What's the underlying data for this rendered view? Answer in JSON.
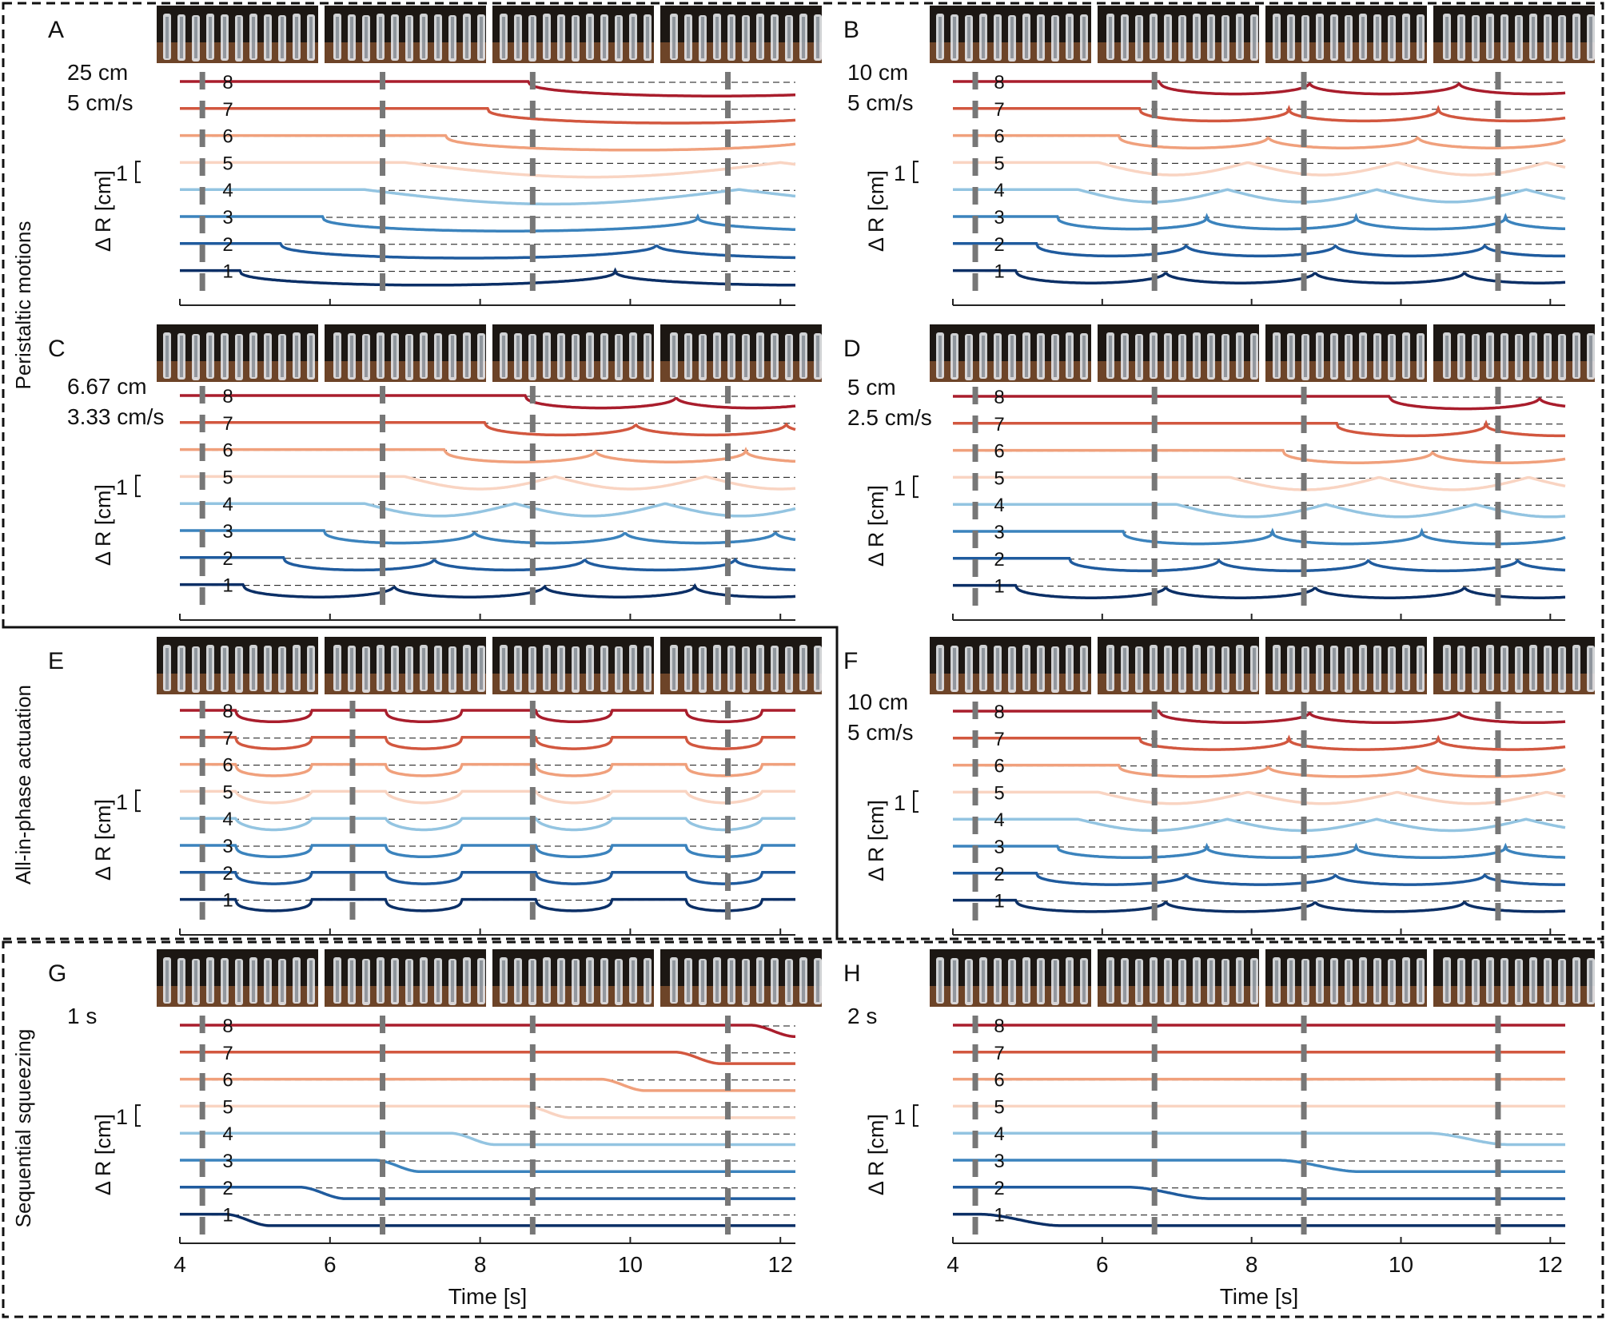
{
  "figure": {
    "groups": [
      {
        "label": "Peristaltic motions"
      },
      {
        "label": "All-in-phase actuation"
      },
      {
        "label": "Sequential squeezing"
      }
    ],
    "x_axis_label": "Time [s]",
    "x_ticks": [
      "4",
      "6",
      "8",
      "10",
      "12"
    ],
    "y_axis_label": "Δ R [cm]",
    "scale_bar_label": "1"
  },
  "colors": {
    "1": "#0b2f66",
    "2": "#1f5b9e",
    "3": "#3b83bd",
    "4": "#93c4e1",
    "5": "#f9d4c2",
    "6": "#f0a07c",
    "7": "#d2573f",
    "8": "#a91d2c",
    "dash_line": "#777777",
    "frame": "#222222",
    "photo_bg": "#1c1713"
  },
  "chart_data": [
    {
      "panel": "A",
      "type": "line",
      "params": [
        "25 cm",
        "5 cm/s"
      ],
      "xlim": [
        4,
        12.2
      ],
      "wavelength_cm": 25,
      "speed_cm_s": 5,
      "mode": "peristaltic",
      "dip_cm": 0.7,
      "x_markers": [
        4.3,
        6.7,
        8.7,
        11.3
      ],
      "series_labels": [
        "1",
        "2",
        "3",
        "4",
        "5",
        "6",
        "7",
        "8"
      ]
    },
    {
      "panel": "B",
      "type": "line",
      "params": [
        "10 cm",
        "5 cm/s"
      ],
      "xlim": [
        4,
        12.2
      ],
      "wavelength_cm": 10,
      "speed_cm_s": 5,
      "mode": "peristaltic",
      "dip_cm": 0.6,
      "x_markers": [
        4.3,
        6.7,
        8.7,
        11.3
      ],
      "series_labels": [
        "1",
        "2",
        "3",
        "4",
        "5",
        "6",
        "7",
        "8"
      ]
    },
    {
      "panel": "C",
      "type": "line",
      "params": [
        "6.67 cm",
        "3.33 cm/s"
      ],
      "xlim": [
        4,
        12.2
      ],
      "wavelength_cm": 6.67,
      "speed_cm_s": 3.33,
      "mode": "peristaltic",
      "dip_cm": 0.6,
      "x_markers": [
        4.3,
        6.7,
        8.7,
        11.3
      ],
      "series_labels": [
        "1",
        "2",
        "3",
        "4",
        "5",
        "6",
        "7",
        "8"
      ]
    },
    {
      "panel": "D",
      "type": "line",
      "params": [
        "5 cm",
        "2.5 cm/s"
      ],
      "xlim": [
        4,
        12.2
      ],
      "wavelength_cm": 5,
      "speed_cm_s": 2.5,
      "mode": "peristaltic",
      "dip_cm": 0.6,
      "x_markers": [
        4.3,
        6.7,
        8.7,
        11.3
      ],
      "series_labels": [
        "1",
        "2",
        "3",
        "4",
        "5",
        "6",
        "7",
        "8"
      ]
    },
    {
      "panel": "E",
      "type": "line",
      "params": [],
      "xlim": [
        4,
        12.2
      ],
      "mode": "in-phase",
      "period_s": 2,
      "dip_cm": 0.55,
      "x_markers": [
        4.3,
        6.3,
        8.7,
        11.3
      ],
      "series_labels": [
        "1",
        "2",
        "3",
        "4",
        "5",
        "6",
        "7",
        "8"
      ]
    },
    {
      "panel": "F",
      "type": "line",
      "params": [
        "10 cm",
        "5 cm/s"
      ],
      "xlim": [
        4,
        12.2
      ],
      "wavelength_cm": 10,
      "speed_cm_s": 5,
      "mode": "peristaltic",
      "dip_cm": 0.55,
      "x_markers": [
        4.3,
        6.7,
        8.7,
        11.3
      ],
      "series_labels": [
        "1",
        "2",
        "3",
        "4",
        "5",
        "6",
        "7",
        "8"
      ]
    },
    {
      "panel": "G",
      "type": "line",
      "params": [
        "1 s"
      ],
      "xlim": [
        4,
        12.2
      ],
      "mode": "sequential",
      "interval_s": 1,
      "first_start_s": 4.6,
      "dip_cm": 0.55,
      "x_markers": [
        4.3,
        6.7,
        8.7,
        11.3
      ],
      "series_labels": [
        "1",
        "2",
        "3",
        "4",
        "5",
        "6",
        "7",
        "8"
      ]
    },
    {
      "panel": "H",
      "type": "line",
      "params": [
        "2 s"
      ],
      "xlim": [
        4,
        12.2
      ],
      "mode": "sequential",
      "interval_s": 2,
      "first_start_s": 4.35,
      "dip_cm": 0.55,
      "x_markers": [
        4.3,
        6.7,
        8.7,
        11.3
      ],
      "series_labels": [
        "1",
        "2",
        "3",
        "4",
        "5",
        "6",
        "7",
        "8"
      ]
    }
  ]
}
